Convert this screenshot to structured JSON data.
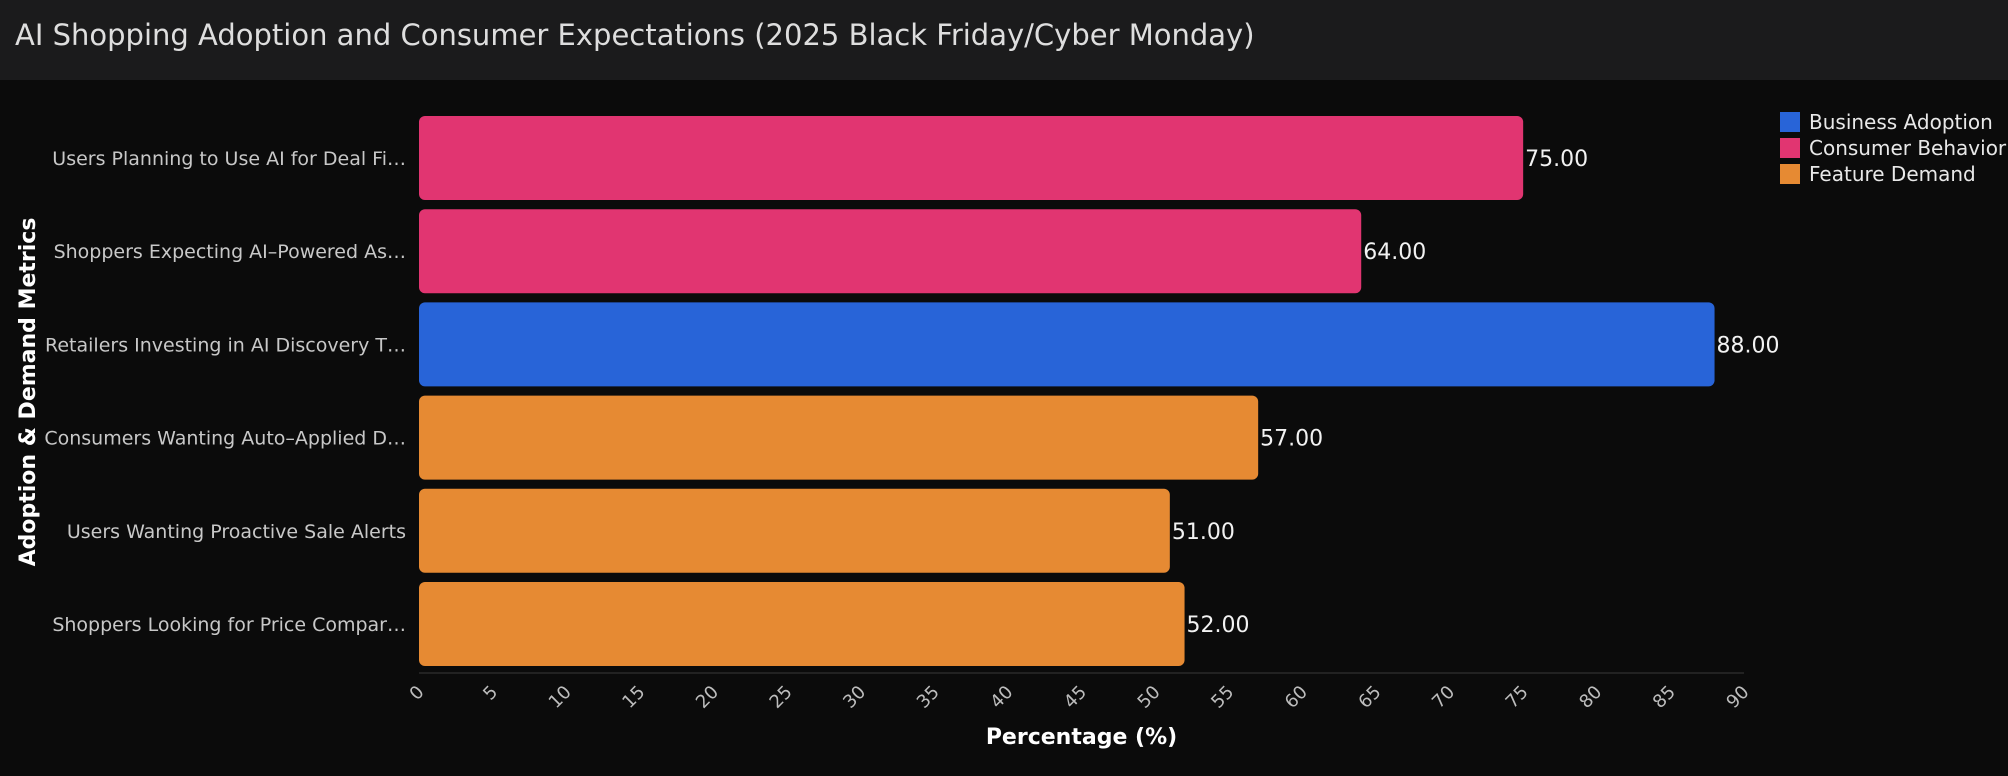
{
  "title": "AI Shopping Adoption and Consumer Expectations (2025 Black Friday/Cyber Monday)",
  "chart_data": {
    "type": "bar",
    "orientation": "horizontal",
    "title": "AI Shopping Adoption and Consumer Expectations (2025 Black Friday/Cyber Monday)",
    "xlabel": "Percentage (%)",
    "ylabel": "Adoption & Demand Metrics",
    "xlim": [
      0,
      90
    ],
    "xticks": [
      "0",
      "5",
      "10",
      "15",
      "20",
      "25",
      "30",
      "35",
      "40",
      "45",
      "50",
      "55",
      "60",
      "65",
      "70",
      "75",
      "80",
      "85",
      "90"
    ],
    "grid": false,
    "legend_position": "top-right",
    "series": [
      {
        "name": "Business Adoption",
        "color": "#2864d8"
      },
      {
        "name": "Consumer Behavior",
        "color": "#e13571"
      },
      {
        "name": "Feature Demand",
        "color": "#e68a33"
      }
    ],
    "bars": [
      {
        "label": "Users Planning to Use AI for Deal Fi…",
        "value": 75,
        "value_label": "75.00",
        "series": "Consumer Behavior"
      },
      {
        "label": "Shoppers Expecting AI–Powered As…",
        "value": 64,
        "value_label": "64.00",
        "series": "Consumer Behavior"
      },
      {
        "label": "Retailers Investing in AI Discovery T…",
        "value": 88,
        "value_label": "88.00",
        "series": "Business Adoption"
      },
      {
        "label": "Consumers Wanting Auto–Applied D…",
        "value": 57,
        "value_label": "57.00",
        "series": "Feature Demand"
      },
      {
        "label": "Users Wanting Proactive Sale Alerts",
        "value": 51,
        "value_label": "51.00",
        "series": "Feature Demand"
      },
      {
        "label": "Shoppers Looking for Price Compar…",
        "value": 52,
        "value_label": "52.00",
        "series": "Feature Demand"
      }
    ]
  }
}
